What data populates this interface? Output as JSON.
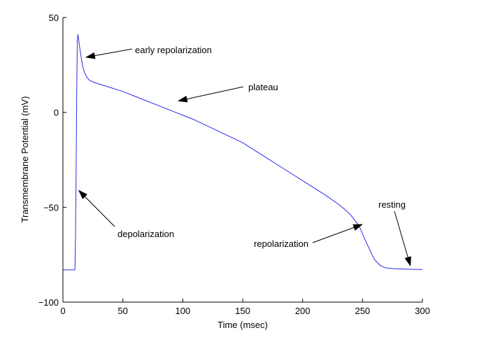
{
  "chart_data": {
    "type": "line",
    "title": "",
    "xlabel": "Time (msec)",
    "ylabel": "Transmembrane Potential (mV)",
    "xlim": [
      0,
      300
    ],
    "ylim": [
      -100,
      50
    ],
    "xticks": [
      0,
      50,
      100,
      150,
      200,
      250,
      300
    ],
    "yticks": [
      -100,
      -50,
      0,
      50
    ],
    "xtick_labels": [
      "0",
      "50",
      "100",
      "150",
      "200",
      "250",
      "300"
    ],
    "ytick_labels": [
      "−100",
      "−50",
      "0",
      "50"
    ],
    "grid": false,
    "line_color": "#2a2af0",
    "series": [
      {
        "x": [
          0,
          9,
          10,
          10.5,
          11,
          11.5,
          12,
          12.5,
          13,
          14,
          15,
          16,
          17,
          18,
          20,
          22,
          25,
          30,
          40,
          50,
          60,
          70,
          80,
          90,
          100,
          110,
          120,
          130,
          140,
          150,
          160,
          170,
          180,
          190,
          200,
          210,
          220,
          230,
          235,
          240,
          245,
          248,
          250,
          252,
          255,
          258,
          260,
          262,
          265,
          268,
          270,
          275,
          280,
          290,
          300
        ],
        "y": [
          -83,
          -83,
          -83,
          -65,
          -30,
          10,
          38,
          41,
          39,
          34,
          30,
          26,
          23,
          21,
          18.5,
          17,
          16,
          15,
          13,
          11,
          8.5,
          6,
          3.5,
          1,
          -1.5,
          -4,
          -7,
          -10,
          -13,
          -16,
          -20,
          -24,
          -28,
          -32,
          -36,
          -40,
          -44,
          -48.5,
          -51,
          -54,
          -58,
          -61,
          -64,
          -67,
          -71,
          -75,
          -77.5,
          -79,
          -80.8,
          -81.7,
          -82,
          -82.3,
          -82.5,
          -82.7,
          -82.8
        ]
      }
    ],
    "annotations": [
      {
        "text": "early repolarization",
        "arrow_x": 19,
        "arrow_y": 29
      },
      {
        "text": "plateau",
        "arrow_x": 96,
        "arrow_y": 6
      },
      {
        "text": "depolarization",
        "arrow_x": 13,
        "arrow_y": -41
      },
      {
        "text": "repolarization",
        "arrow_x": 250,
        "arrow_y": -59
      },
      {
        "text": "resting",
        "arrow_x": 290,
        "arrow_y": -81
      }
    ]
  }
}
